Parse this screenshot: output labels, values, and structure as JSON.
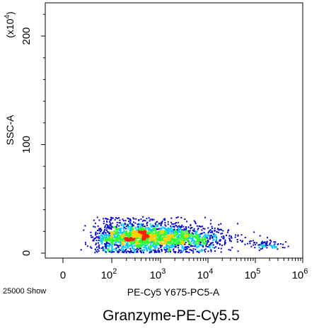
{
  "chart_data": {
    "type": "scatter",
    "style": "density-dot-plot",
    "title": "",
    "caption": "Granzyme-PE-Cy5.5",
    "xlabel": "PE-Cy5 Y675-PC5-A",
    "ylabel": "SSC-A",
    "y_multiplier_label": "(x10",
    "y_multiplier_exponent": "4",
    "y_multiplier_close": ")",
    "event_count_label": "25000 Show",
    "x_scale": "biexponential",
    "x_ticks": [
      {
        "value": 0,
        "base": "0",
        "exp": ""
      },
      {
        "value": 100,
        "base": "10",
        "exp": "2"
      },
      {
        "value": 1000,
        "base": "10",
        "exp": "3"
      },
      {
        "value": 10000,
        "base": "10",
        "exp": "4"
      },
      {
        "value": 100000,
        "base": "10",
        "exp": "5"
      },
      {
        "value": 1000000,
        "base": "10",
        "exp": "6"
      }
    ],
    "y_ticks": [
      {
        "value": 0,
        "label": "0"
      },
      {
        "value": 100,
        "label": "100"
      },
      {
        "value": 200,
        "label": "200"
      }
    ],
    "y_units": "x10^4",
    "ylim": [
      -5,
      230
    ],
    "xlim_log": [
      0.5,
      6.0
    ],
    "grid": false,
    "legend": "none",
    "density_colors": [
      "#0000c8",
      "#00c8ff",
      "#30ff30",
      "#ffd000",
      "#ff2000"
    ],
    "clusters": [
      {
        "name_hint": "main",
        "x_log_center": 2.55,
        "x_log_spread": 0.55,
        "y_center": 15,
        "y_spread": 9,
        "share": 0.72
      },
      {
        "name_hint": "tail",
        "x_log_center": 3.6,
        "x_log_spread": 0.45,
        "y_center": 14,
        "y_spread": 8,
        "share": 0.25
      },
      {
        "name_hint": "outliers",
        "x_log_center": 5.2,
        "x_log_spread": 0.2,
        "y_center": 8,
        "y_spread": 3,
        "share": 0.03
      }
    ],
    "sample_points": 2600
  }
}
